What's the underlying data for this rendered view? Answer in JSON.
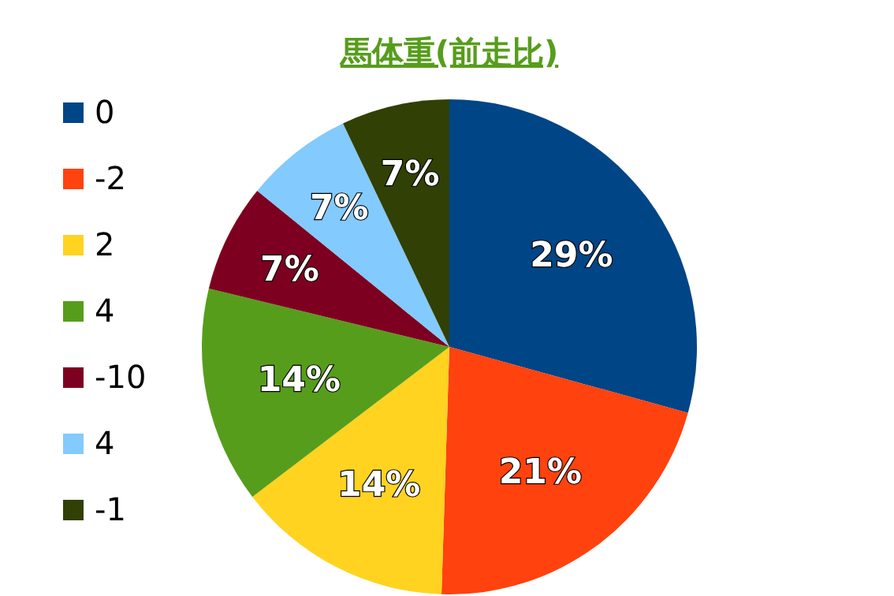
{
  "chart_data": {
    "type": "pie",
    "title": "馬体重(前走比)",
    "categories": [
      "0",
      "-2",
      "2",
      "4",
      "-10",
      "4",
      "-1"
    ],
    "values": [
      29,
      21,
      14,
      14,
      7,
      7,
      7
    ],
    "value_labels": [
      "29%",
      "21%",
      "14%",
      "14%",
      "7%",
      "7%",
      "7%"
    ],
    "colors": [
      "#004586",
      "#ff420e",
      "#ffd320",
      "#579d1c",
      "#7e0021",
      "#83caff",
      "#314004"
    ],
    "legend": "left"
  }
}
